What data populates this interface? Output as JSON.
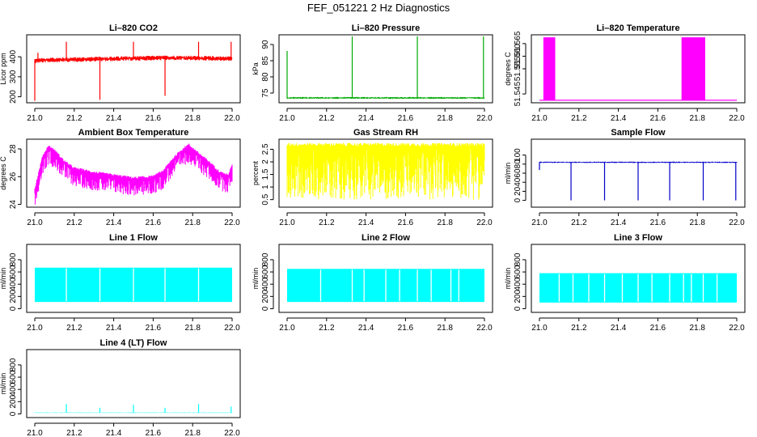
{
  "title": "FEF_051221  2 Hz Diagnostics",
  "chart_data": [
    {
      "type": "line",
      "title": "Li–820 CO2",
      "ylabel": "Licor ppm",
      "color": "#ff0000",
      "style": "noisy",
      "xlim": [
        21.0,
        22.0
      ],
      "ylim": [
        170,
        510
      ],
      "xticks": [
        "21.0",
        "21.2",
        "21.4",
        "21.6",
        "21.8",
        "22.0"
      ],
      "yticks": [
        200,
        300,
        400
      ],
      "base": [
        [
          21.0,
          380
        ],
        [
          21.1,
          385
        ],
        [
          21.3,
          388
        ],
        [
          21.5,
          392
        ],
        [
          21.7,
          395
        ],
        [
          21.9,
          392
        ],
        [
          22.0,
          390
        ]
      ],
      "noise_up": 12,
      "noise_down": 12,
      "spikes": [
        [
          21.0,
          180
        ],
        [
          21.016,
          420
        ],
        [
          21.16,
          475
        ],
        [
          21.33,
          185
        ],
        [
          21.5,
          475
        ],
        [
          21.66,
          205
        ],
        [
          21.83,
          475
        ],
        [
          21.995,
          475
        ]
      ]
    },
    {
      "type": "line",
      "title": "Li–820 Pressure",
      "ylabel": "kPa",
      "color": "#00aa00",
      "style": "noisy",
      "xlim": [
        21.0,
        22.0
      ],
      "ylim": [
        72,
        93
      ],
      "xticks": [
        "21.0",
        "21.2",
        "21.4",
        "21.6",
        "21.8",
        "22.0"
      ],
      "yticks": [
        75,
        80,
        85,
        90
      ],
      "base": [
        [
          21.0,
          73.5
        ],
        [
          22.0,
          73.5
        ]
      ],
      "noise_up": 0.3,
      "noise_down": 0.3,
      "spikes": [
        [
          21.0,
          88
        ],
        [
          21.33,
          92.5
        ],
        [
          21.66,
          92.5
        ],
        [
          21.995,
          92.5
        ]
      ]
    },
    {
      "type": "line",
      "title": "Li–820 Temperature",
      "ylabel": "degrees C",
      "color": "#ff00ff",
      "style": "bands",
      "xlim": [
        21.0,
        22.0
      ],
      "ylim": [
        51.5415,
        51.5685
      ],
      "xticks": [
        "21.0",
        "21.2",
        "21.4",
        "21.6",
        "21.8",
        "22.0"
      ],
      "yticks": [
        51.545,
        51.555,
        51.56,
        51.565
      ],
      "ytick_labels": [
        "51.545",
        "51.555",
        "51.560",
        "51.565"
      ],
      "base": [
        [
          21.0,
          51.5425
        ],
        [
          22.0,
          51.5425
        ]
      ],
      "bands": [
        [
          21.02,
          21.08,
          51.5425,
          51.5675
        ],
        [
          21.72,
          21.84,
          51.5425,
          51.5675
        ]
      ]
    },
    {
      "type": "line",
      "title": "Ambient Box Temperature",
      "ylabel": "degrees C",
      "color": "#ff00ff",
      "style": "noisy",
      "xlim": [
        21.0,
        22.0
      ],
      "ylim": [
        23.8,
        28.7
      ],
      "xticks": [
        "21.0",
        "21.2",
        "21.4",
        "21.6",
        "21.8",
        "22.0"
      ],
      "yticks": [
        24,
        26,
        28
      ],
      "base": [
        [
          21.0,
          25.0
        ],
        [
          21.04,
          27.4
        ],
        [
          21.07,
          28.1
        ],
        [
          21.1,
          27.8
        ],
        [
          21.15,
          27.0
        ],
        [
          21.2,
          26.5
        ],
        [
          21.3,
          26.2
        ],
        [
          21.4,
          26.0
        ],
        [
          21.5,
          25.8
        ],
        [
          21.6,
          25.9
        ],
        [
          21.65,
          26.3
        ],
        [
          21.7,
          27.2
        ],
        [
          21.75,
          27.9
        ],
        [
          21.78,
          28.2
        ],
        [
          21.82,
          27.7
        ],
        [
          21.88,
          27.0
        ],
        [
          21.94,
          26.2
        ],
        [
          21.98,
          26.0
        ],
        [
          22.0,
          26.7
        ]
      ],
      "noise_up": 0.2,
      "noise_down": 1.2
    },
    {
      "type": "line",
      "title": "Gas Stream RH",
      "ylabel": "percent",
      "color": "#ffff00",
      "style": "noisy",
      "xlim": [
        21.0,
        22.0
      ],
      "ylim": [
        0.2,
        2.9
      ],
      "xticks": [
        "21.0",
        "21.2",
        "21.4",
        "21.6",
        "21.8",
        "22.0"
      ],
      "yticks": [
        0.5,
        1.0,
        1.5,
        2.0,
        2.5
      ],
      "base": [
        [
          21.0,
          2.6
        ],
        [
          22.0,
          2.6
        ]
      ],
      "noise_up": 0.15,
      "noise_down": 2.1
    },
    {
      "type": "line",
      "title": "Sample Flow",
      "ylabel": "ml/min",
      "color": "#0000cc",
      "style": "noisy",
      "xlim": [
        21.0,
        22.0
      ],
      "ylim": [
        -15,
        135
      ],
      "xticks": [
        "21.0",
        "21.2",
        "21.4",
        "21.6",
        "21.8",
        "22.0"
      ],
      "yticks": [
        0,
        20,
        40,
        60,
        80,
        100
      ],
      "base": [
        [
          21.0,
          84
        ],
        [
          22.0,
          84
        ]
      ],
      "noise_up": 1.5,
      "noise_down": 1.5,
      "spikes": [
        [
          21.0,
          67
        ],
        [
          21.16,
          0
        ],
        [
          21.33,
          0
        ],
        [
          21.5,
          0
        ],
        [
          21.66,
          0
        ],
        [
          21.83,
          0
        ],
        [
          21.995,
          0
        ]
      ]
    },
    {
      "type": "line",
      "title": "Line 1 Flow",
      "ylabel": "ml/min",
      "color": "#00ffff",
      "style": "fill",
      "xlim": [
        21.0,
        22.0
      ],
      "ylim": [
        -60,
        1050
      ],
      "xticks": [
        "21.0",
        "21.2",
        "21.4",
        "21.6",
        "21.8",
        "22.0"
      ],
      "yticks": [
        0,
        200,
        400,
        600,
        800
      ],
      "base": [
        [
          21.0,
          670
        ],
        [
          22.0,
          670
        ]
      ],
      "low": 110,
      "gaps": [
        21.16,
        21.33,
        21.5,
        21.66,
        21.83
      ]
    },
    {
      "type": "line",
      "title": "Line 2 Flow",
      "ylabel": "ml/min",
      "color": "#00ffff",
      "style": "fill",
      "xlim": [
        21.0,
        22.0
      ],
      "ylim": [
        -60,
        1050
      ],
      "xticks": [
        "21.0",
        "21.2",
        "21.4",
        "21.6",
        "21.8",
        "22.0"
      ],
      "yticks": [
        0,
        200,
        400,
        600,
        800
      ],
      "base": [
        [
          21.0,
          650
        ],
        [
          22.0,
          650
        ]
      ],
      "low": 110,
      "gaps": [
        21.17,
        21.33,
        21.39,
        21.5,
        21.57,
        21.66,
        21.73,
        21.83,
        21.87
      ]
    },
    {
      "type": "line",
      "title": "Line 3 Flow",
      "ylabel": "ml/min",
      "color": "#00ffff",
      "style": "fill",
      "xlim": [
        21.0,
        22.0
      ],
      "ylim": [
        -60,
        1050
      ],
      "xticks": [
        "21.0",
        "21.2",
        "21.4",
        "21.6",
        "21.8",
        "22.0"
      ],
      "yticks": [
        0,
        200,
        400,
        600,
        800
      ],
      "base": [
        [
          21.0,
          580
        ],
        [
          22.0,
          580
        ]
      ],
      "low": 100,
      "gaps": [
        21.1,
        21.17,
        21.25,
        21.33,
        21.42,
        21.5,
        21.57,
        21.66,
        21.73,
        21.77,
        21.83,
        21.9
      ]
    },
    {
      "type": "line",
      "title": "Line 4 (LT) Flow",
      "ylabel": "ml/min",
      "color": "#00ffff",
      "style": "noisy",
      "xlim": [
        21.0,
        22.0
      ],
      "ylim": [
        -60,
        1050
      ],
      "xticks": [
        "21.0",
        "21.2",
        "21.4",
        "21.6",
        "21.8",
        "22.0"
      ],
      "yticks": [
        0,
        200,
        400,
        600,
        800
      ],
      "base": [
        [
          21.0,
          20
        ],
        [
          22.0,
          20
        ]
      ],
      "noise_up": 4,
      "noise_down": 4,
      "spikes": [
        [
          21.16,
          160
        ],
        [
          21.33,
          100
        ],
        [
          21.5,
          150
        ],
        [
          21.66,
          100
        ],
        [
          21.83,
          160
        ],
        [
          21.995,
          120
        ]
      ]
    }
  ]
}
